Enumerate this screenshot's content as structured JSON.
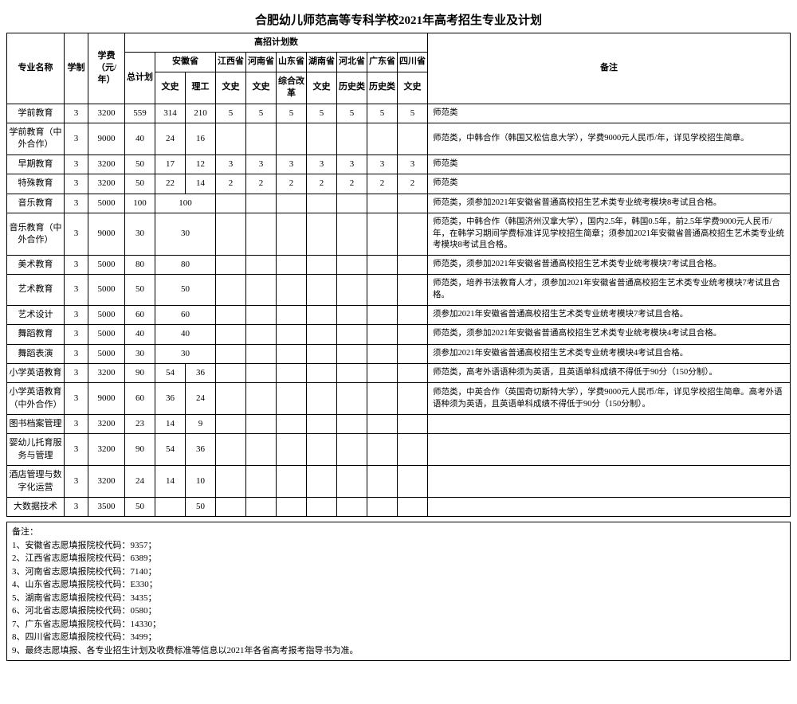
{
  "title": "合肥幼儿师范高等专科学校2021年高考招生专业及计划",
  "headers": {
    "major": "专业名称",
    "duration": "学制",
    "fee": "学费（元/年）",
    "plan_group": "高招计划数",
    "total": "总计划",
    "anhui": "安徽省",
    "jiangxi": "江西省",
    "henan": "河南省",
    "shandong": "山东省",
    "hunan": "湖南省",
    "hebei": "河北省",
    "guangdong": "广东省",
    "sichuan": "四川省",
    "remark": "备注",
    "wenshi": "文史",
    "ligong": "理工",
    "zonggai": "综合改革",
    "lishi": "历史类"
  },
  "rows": [
    {
      "major": "学前教育",
      "dur": "3",
      "fee": "3200",
      "total": "559",
      "ah_ws": "314",
      "ah_lg": "210",
      "jx": "5",
      "hn": "5",
      "sd": "5",
      "hun": "5",
      "heb": "5",
      "gd": "5",
      "sc": "5",
      "remark": "师范类"
    },
    {
      "major": "学前教育（中外合作）",
      "dur": "3",
      "fee": "9000",
      "total": "40",
      "ah_ws": "24",
      "ah_lg": "16",
      "jx": "",
      "hn": "",
      "sd": "",
      "hun": "",
      "heb": "",
      "gd": "",
      "sc": "",
      "remark": "师范类，中韩合作（韩国又松信息大学），学费9000元人民币/年，详见学校招生简章。"
    },
    {
      "major": "早期教育",
      "dur": "3",
      "fee": "3200",
      "total": "50",
      "ah_ws": "17",
      "ah_lg": "12",
      "jx": "3",
      "hn": "3",
      "sd": "3",
      "hun": "3",
      "heb": "3",
      "gd": "3",
      "sc": "3",
      "remark": "师范类"
    },
    {
      "major": "特殊教育",
      "dur": "3",
      "fee": "3200",
      "total": "50",
      "ah_ws": "22",
      "ah_lg": "14",
      "jx": "2",
      "hn": "2",
      "sd": "2",
      "hun": "2",
      "heb": "2",
      "gd": "2",
      "sc": "2",
      "remark": "师范类"
    },
    {
      "major": "音乐教育",
      "dur": "3",
      "fee": "5000",
      "total": "100",
      "merged": "100",
      "remark": "师范类，须参加2021年安徽省普通高校招生艺术类专业统考模块8考试且合格。"
    },
    {
      "major": "音乐教育（中外合作）",
      "dur": "3",
      "fee": "9000",
      "total": "30",
      "merged": "30",
      "remark": "师范类，中韩合作（韩国济州汉拿大学），国内2.5年，韩国0.5年，前2.5年学费9000元人民币/年，在韩学习期间学费标准详见学校招生简章；须参加2021年安徽省普通高校招生艺术类专业统考模块8考试且合格。"
    },
    {
      "major": "美术教育",
      "dur": "3",
      "fee": "5000",
      "total": "80",
      "merged": "80",
      "remark": "师范类，须参加2021年安徽省普通高校招生艺术类专业统考模块7考试且合格。"
    },
    {
      "major": "艺术教育",
      "dur": "3",
      "fee": "5000",
      "total": "50",
      "merged": "50",
      "remark": "师范类，培养书法教育人才，须参加2021年安徽省普通高校招生艺术类专业统考模块7考试且合格。"
    },
    {
      "major": "艺术设计",
      "dur": "3",
      "fee": "5000",
      "total": "60",
      "merged": "60",
      "remark": "须参加2021年安徽省普通高校招生艺术类专业统考模块7考试且合格。"
    },
    {
      "major": "舞蹈教育",
      "dur": "3",
      "fee": "5000",
      "total": "40",
      "merged": "40",
      "remark": "师范类，须参加2021年安徽省普通高校招生艺术类专业统考模块4考试且合格。"
    },
    {
      "major": "舞蹈表演",
      "dur": "3",
      "fee": "5000",
      "total": "30",
      "merged": "30",
      "remark": "须参加2021年安徽省普通高校招生艺术类专业统考模块4考试且合格。"
    },
    {
      "major": "小学英语教育",
      "dur": "3",
      "fee": "3200",
      "total": "90",
      "ah_ws": "54",
      "ah_lg": "36",
      "jx": "",
      "hn": "",
      "sd": "",
      "hun": "",
      "heb": "",
      "gd": "",
      "sc": "",
      "remark": "师范类，高考外语语种须为英语，且英语单科成绩不得低于90分（150分制）。"
    },
    {
      "major": "小学英语教育（中外合作）",
      "dur": "3",
      "fee": "9000",
      "total": "60",
      "ah_ws": "36",
      "ah_lg": "24",
      "jx": "",
      "hn": "",
      "sd": "",
      "hun": "",
      "heb": "",
      "gd": "",
      "sc": "",
      "remark": "师范类，中英合作（英国奇切斯特大学），学费9000元人民币/年，详见学校招生简章。高考外语语种须为英语，且英语单科成绩不得低于90分（150分制）。"
    },
    {
      "major": "图书档案管理",
      "dur": "3",
      "fee": "3200",
      "total": "23",
      "ah_ws": "14",
      "ah_lg": "9",
      "jx": "",
      "hn": "",
      "sd": "",
      "hun": "",
      "heb": "",
      "gd": "",
      "sc": "",
      "remark": ""
    },
    {
      "major": "婴幼儿托育服务与管理",
      "dur": "3",
      "fee": "3200",
      "total": "90",
      "ah_ws": "54",
      "ah_lg": "36",
      "jx": "",
      "hn": "",
      "sd": "",
      "hun": "",
      "heb": "",
      "gd": "",
      "sc": "",
      "remark": ""
    },
    {
      "major": "酒店管理与数字化运营",
      "dur": "3",
      "fee": "3200",
      "total": "24",
      "ah_ws": "14",
      "ah_lg": "10",
      "jx": "",
      "hn": "",
      "sd": "",
      "hun": "",
      "heb": "",
      "gd": "",
      "sc": "",
      "remark": ""
    },
    {
      "major": "大数据技术",
      "dur": "3",
      "fee": "3500",
      "total": "50",
      "merged_lg": "50",
      "remark": ""
    }
  ],
  "footnotes": {
    "label": "备注：",
    "items": [
      "1、安徽省志愿填报院校代码：9357；",
      "2、江西省志愿填报院校代码：6389；",
      "3、河南省志愿填报院校代码：7140；",
      "4、山东省志愿填报院校代码：E330；",
      "5、湖南省志愿填报院校代码：3435；",
      "6、河北省志愿填报院校代码：0580；",
      "7、广东省志愿填报院校代码：14330；",
      "8、四川省志愿填报院校代码：3499；",
      "9、最终志愿填报、各专业招生计划及收费标准等信息以2021年各省高考报考指导书为准。"
    ]
  }
}
